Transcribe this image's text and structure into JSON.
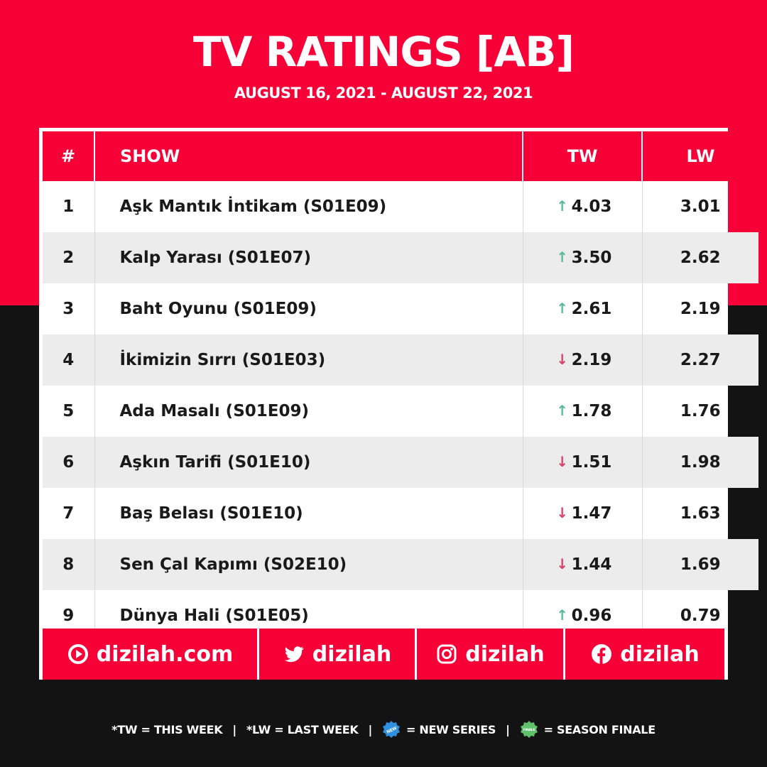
{
  "header": {
    "title": "TV RATINGS [AB]",
    "date_range": "AUGUST 16, 2021 - AUGUST 22, 2021"
  },
  "table": {
    "columns": [
      "#",
      "SHOW",
      "TW",
      "LW"
    ],
    "rows": [
      {
        "rank": "1",
        "show": "Aşk Mantık İntikam (S01E09)",
        "trend": "up",
        "tw": "4.03",
        "lw": "3.01"
      },
      {
        "rank": "2",
        "show": "Kalp Yarası (S01E07)",
        "trend": "up",
        "tw": "3.50",
        "lw": "2.62"
      },
      {
        "rank": "3",
        "show": "Baht Oyunu (S01E09)",
        "trend": "up",
        "tw": "2.61",
        "lw": "2.19"
      },
      {
        "rank": "4",
        "show": "İkimizin Sırrı (S01E03)",
        "trend": "down",
        "tw": "2.19",
        "lw": "2.27"
      },
      {
        "rank": "5",
        "show": "Ada Masalı (S01E09)",
        "trend": "up",
        "tw": "1.78",
        "lw": "1.76"
      },
      {
        "rank": "6",
        "show": "Aşkın Tarifi (S01E10)",
        "trend": "down",
        "tw": "1.51",
        "lw": "1.98"
      },
      {
        "rank": "7",
        "show": "Baş Belası (S01E10)",
        "trend": "down",
        "tw": "1.47",
        "lw": "1.63"
      },
      {
        "rank": "8",
        "show": "Sen Çal Kapımı (S02E10)",
        "trend": "down",
        "tw": "1.44",
        "lw": "1.69"
      },
      {
        "rank": "9",
        "show": "Dünya Hali (S01E05)",
        "trend": "up",
        "tw": "0.96",
        "lw": "0.79"
      }
    ]
  },
  "social": {
    "website": "dizilah.com",
    "twitter": "dizilah",
    "instagram": "dizilah",
    "facebook": "dizilah"
  },
  "legend": {
    "tw": "*TW = THIS WEEK",
    "lw": "*LW = LAST WEEK",
    "new_badge": "NEW",
    "new_series": "= NEW SERIES",
    "finale_badge": "FINALE",
    "season_finale": "= SEASON FINALE",
    "separator": "|"
  },
  "icons": {
    "up": "arrow-up-icon",
    "down": "arrow-down-icon"
  },
  "colors": {
    "brand_red": "#f70037",
    "dark_bg": "#141313",
    "up_arrow": "#5ab99a",
    "down_arrow": "#d6436b",
    "row_alt": "#ececec",
    "new_badge": "#2f8fe0",
    "finale_badge": "#5fc26a"
  }
}
